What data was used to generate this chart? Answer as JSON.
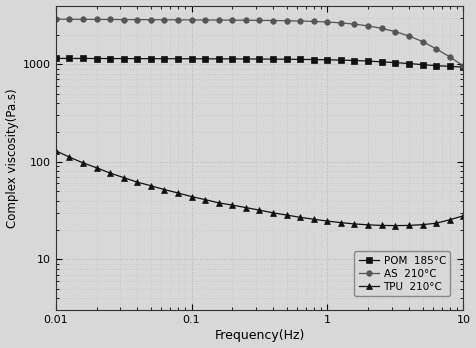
{
  "title": "",
  "xlabel": "Frequency(Hz)",
  "ylabel": "Complex viscosity(Pa.s)",
  "xlim": [
    0.01,
    10
  ],
  "ylim": [
    3,
    4000
  ],
  "background_color": "#d8d8d8",
  "grid_color": "#bbbbbb",
  "series": [
    {
      "label": "POM  185°C",
      "color": "#111111",
      "marker": "s",
      "markersize": 4,
      "linestyle": "-",
      "x": [
        0.01,
        0.0126,
        0.0158,
        0.02,
        0.025,
        0.0316,
        0.0398,
        0.05,
        0.063,
        0.0794,
        0.1,
        0.126,
        0.158,
        0.2,
        0.25,
        0.316,
        0.398,
        0.5,
        0.63,
        0.794,
        1.0,
        1.26,
        1.58,
        2.0,
        2.5,
        3.16,
        3.98,
        5.0,
        6.3,
        7.94,
        10.0
      ],
      "y": [
        1150,
        1148,
        1147,
        1146,
        1145,
        1144,
        1143,
        1142,
        1141,
        1140,
        1139,
        1138,
        1137,
        1136,
        1134,
        1132,
        1130,
        1127,
        1123,
        1118,
        1112,
        1104,
        1093,
        1079,
        1060,
        1040,
        1018,
        992,
        968,
        952,
        935
      ]
    },
    {
      "label": "AS  210°C",
      "color": "#555555",
      "marker": "o",
      "markersize": 4,
      "linestyle": "-",
      "x": [
        0.01,
        0.0126,
        0.0158,
        0.02,
        0.025,
        0.0316,
        0.0398,
        0.05,
        0.063,
        0.0794,
        0.1,
        0.126,
        0.158,
        0.2,
        0.25,
        0.316,
        0.398,
        0.5,
        0.63,
        0.794,
        1.0,
        1.26,
        1.58,
        2.0,
        2.5,
        3.16,
        3.98,
        5.0,
        6.3,
        7.94,
        10.0
      ],
      "y": [
        2900,
        2895,
        2890,
        2885,
        2880,
        2875,
        2870,
        2865,
        2860,
        2855,
        2850,
        2845,
        2840,
        2835,
        2828,
        2820,
        2810,
        2795,
        2775,
        2748,
        2710,
        2655,
        2580,
        2475,
        2335,
        2160,
        1950,
        1710,
        1440,
        1190,
        960
      ]
    },
    {
      "label": "TPU  210°C",
      "color": "#111111",
      "marker": "^",
      "markersize": 4,
      "linestyle": "-",
      "x": [
        0.01,
        0.0126,
        0.0158,
        0.02,
        0.025,
        0.0316,
        0.0398,
        0.05,
        0.063,
        0.0794,
        0.1,
        0.126,
        0.158,
        0.2,
        0.25,
        0.316,
        0.398,
        0.5,
        0.63,
        0.794,
        1.0,
        1.26,
        1.58,
        2.0,
        2.5,
        3.16,
        3.98,
        5.0,
        6.3,
        7.94,
        10.0
      ],
      "y": [
        130,
        112,
        98,
        87,
        77,
        69,
        62,
        57,
        52,
        48,
        44,
        41,
        38,
        36,
        34,
        32,
        30,
        28.5,
        27,
        25.8,
        24.7,
        23.8,
        23.1,
        22.6,
        22.3,
        22.2,
        22.3,
        22.7,
        23.5,
        25.5,
        28
      ]
    }
  ],
  "legend_labels": [
    "POM  185°C",
    "AS  210°C",
    "TPU  210°C"
  ],
  "yticks": [
    10,
    100,
    1000
  ],
  "ytick_labels": [
    "10",
    "100",
    "1000"
  ],
  "xticks": [
    0.01,
    0.1,
    1,
    10
  ],
  "xtick_labels": [
    "0.01",
    "0.1",
    "1",
    "10"
  ]
}
